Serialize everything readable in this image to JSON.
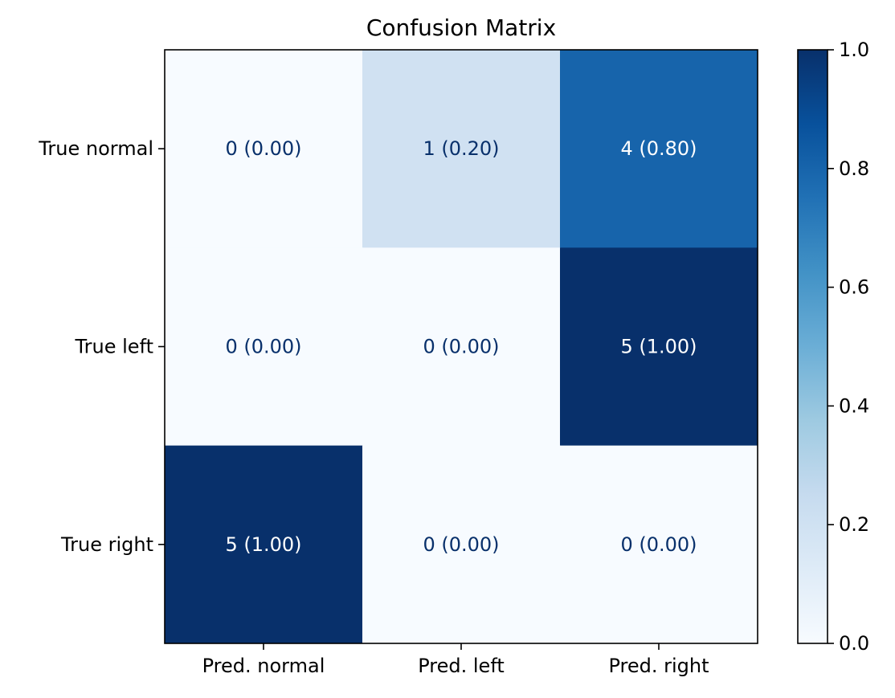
{
  "chart_data": {
    "type": "heatmap",
    "title": "Confusion Matrix",
    "x_categories": [
      "Pred. normal",
      "Pred. left",
      "Pred. right"
    ],
    "y_categories": [
      "True normal",
      "True left",
      "True right"
    ],
    "counts": [
      [
        0,
        1,
        4
      ],
      [
        0,
        0,
        5
      ],
      [
        5,
        0,
        0
      ]
    ],
    "values": [
      [
        0.0,
        0.2,
        0.8
      ],
      [
        0.0,
        0.0,
        1.0
      ],
      [
        1.0,
        0.0,
        0.0
      ]
    ],
    "cell_labels": [
      [
        "0 (0.00)",
        "1 (0.20)",
        "4 (0.80)"
      ],
      [
        "0 (0.00)",
        "0 (0.00)",
        "5 (1.00)"
      ],
      [
        "5 (1.00)",
        "0 (0.00)",
        "0 (0.00)"
      ]
    ],
    "colorbar": {
      "range": [
        0.0,
        1.0
      ],
      "ticks": [
        0.0,
        0.2,
        0.4,
        0.6,
        0.8,
        1.0
      ],
      "tick_labels": [
        "0.0",
        "0.2",
        "0.4",
        "0.6",
        "0.8",
        "1.0"
      ]
    },
    "colormap": "Blues",
    "text_color_light": "#ffffff",
    "text_color_dark": "#08306b"
  }
}
